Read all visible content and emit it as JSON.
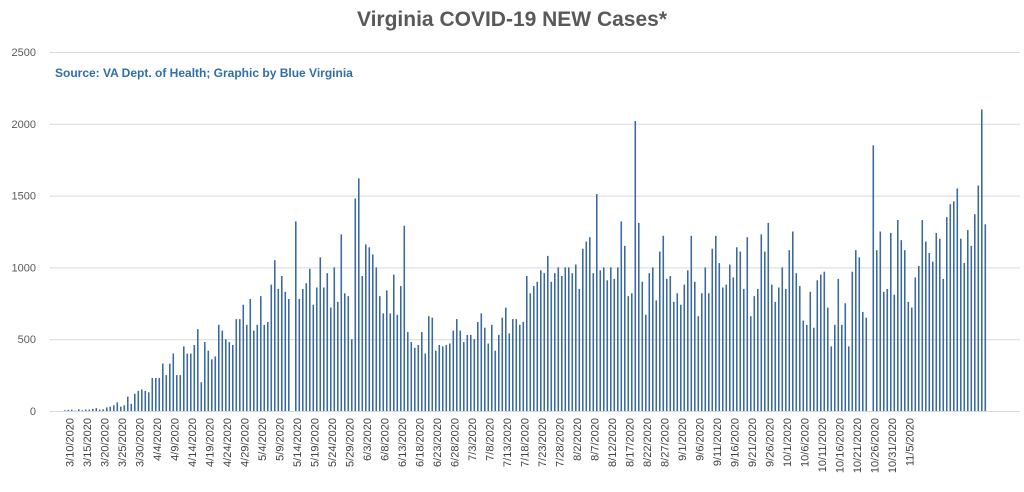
{
  "chart_data": {
    "type": "bar",
    "title": "Virginia COVID-19 NEW Cases*",
    "source": "Source: VA Dept. of Health; Graphic by Blue Virginia",
    "xlabel": "",
    "ylabel": "",
    "ylim": [
      0,
      2500
    ],
    "yticks": [
      0,
      500,
      1000,
      1500,
      2000,
      2500
    ],
    "grid": true,
    "colors": {
      "bar": "#3a6aa0",
      "grid": "#d9d9d9",
      "title": "#595959",
      "source": "#2f6ea8"
    },
    "x_tick_labels": [
      "3/10/2020",
      "3/15/2020",
      "3/20/2020",
      "3/25/2020",
      "3/30/2020",
      "4/4/2020",
      "4/9/2020",
      "4/14/2020",
      "4/19/2020",
      "4/24/2020",
      "4/29/2020",
      "5/4/2020",
      "5/9/2020",
      "5/14/2020",
      "5/19/2020",
      "5/24/2020",
      "5/29/2020",
      "6/3/2020",
      "6/8/2020",
      "6/13/2020",
      "6/18/2020",
      "6/23/2020",
      "6/28/2020",
      "7/3/2020",
      "7/8/2020",
      "7/13/2020",
      "7/18/2020",
      "7/23/2020",
      "7/28/2020",
      "8/2/2020",
      "8/7/2020",
      "8/12/2020",
      "8/17/2020",
      "8/22/2020",
      "8/27/2020",
      "9/1/2020",
      "9/6/2020",
      "9/11/2020",
      "9/16/2020",
      "9/21/2020",
      "9/26/2020",
      "10/1/2020",
      "10/6/2020",
      "10/11/2020",
      "10/16/2020",
      "10/21/2020",
      "10/26/2020",
      "10/31/2020",
      "11/5/2020"
    ],
    "start_date": "3/7/2020",
    "values": [
      0,
      0,
      5,
      8,
      10,
      3,
      12,
      5,
      10,
      10,
      15,
      20,
      10,
      12,
      25,
      30,
      40,
      60,
      30,
      40,
      100,
      50,
      120,
      140,
      150,
      140,
      130,
      230,
      230,
      230,
      330,
      250,
      330,
      400,
      250,
      250,
      450,
      400,
      400,
      460,
      570,
      200,
      480,
      420,
      360,
      380,
      600,
      560,
      500,
      480,
      460,
      640,
      640,
      740,
      600,
      780,
      560,
      600,
      800,
      600,
      620,
      880,
      1050,
      850,
      940,
      830,
      780,
      0,
      1320,
      780,
      850,
      890,
      990,
      740,
      860,
      1070,
      860,
      960,
      720,
      1000,
      760,
      1230,
      820,
      800,
      500,
      1480,
      1620,
      940,
      1160,
      1140,
      1090,
      1000,
      800,
      680,
      840,
      680,
      950,
      670,
      870,
      1290,
      550,
      480,
      440,
      460,
      550,
      400,
      660,
      650,
      420,
      460,
      450,
      460,
      470,
      560,
      640,
      560,
      480,
      530,
      530,
      500,
      620,
      680,
      580,
      470,
      600,
      420,
      530,
      650,
      720,
      540,
      640,
      640,
      600,
      620,
      940,
      820,
      870,
      900,
      980,
      960,
      1080,
      900,
      960,
      1000,
      940,
      1000,
      1000,
      960,
      1020,
      850,
      1130,
      1180,
      1210,
      960,
      1510,
      980,
      1000,
      910,
      1000,
      920,
      1000,
      1320,
      1150,
      800,
      820,
      2020,
      1310,
      900,
      670,
      960,
      1000,
      770,
      1110,
      1220,
      920,
      940,
      760,
      820,
      740,
      880,
      980,
      1220,
      900,
      660,
      820,
      1000,
      820,
      1130,
      1220,
      1030,
      860,
      880,
      1020,
      930,
      1140,
      1110,
      850,
      1210,
      660,
      800,
      850,
      1230,
      1110,
      1310,
      880,
      760,
      860,
      1000,
      850,
      1120,
      1250,
      960,
      870,
      630,
      600,
      830,
      580,
      910,
      950,
      970,
      720,
      450,
      600,
      920,
      600,
      750,
      450,
      970,
      1120,
      1070,
      690,
      650,
      0,
      1850,
      1120,
      1250,
      830,
      850,
      1240,
      810,
      1330,
      1190,
      1120,
      760,
      720,
      930,
      1010,
      1330,
      1180,
      1100,
      1040,
      1240,
      1200,
      920,
      1350,
      1440,
      1460,
      1550,
      1200,
      1030,
      1260,
      1150,
      1370,
      1570,
      2100,
      1300
    ]
  }
}
